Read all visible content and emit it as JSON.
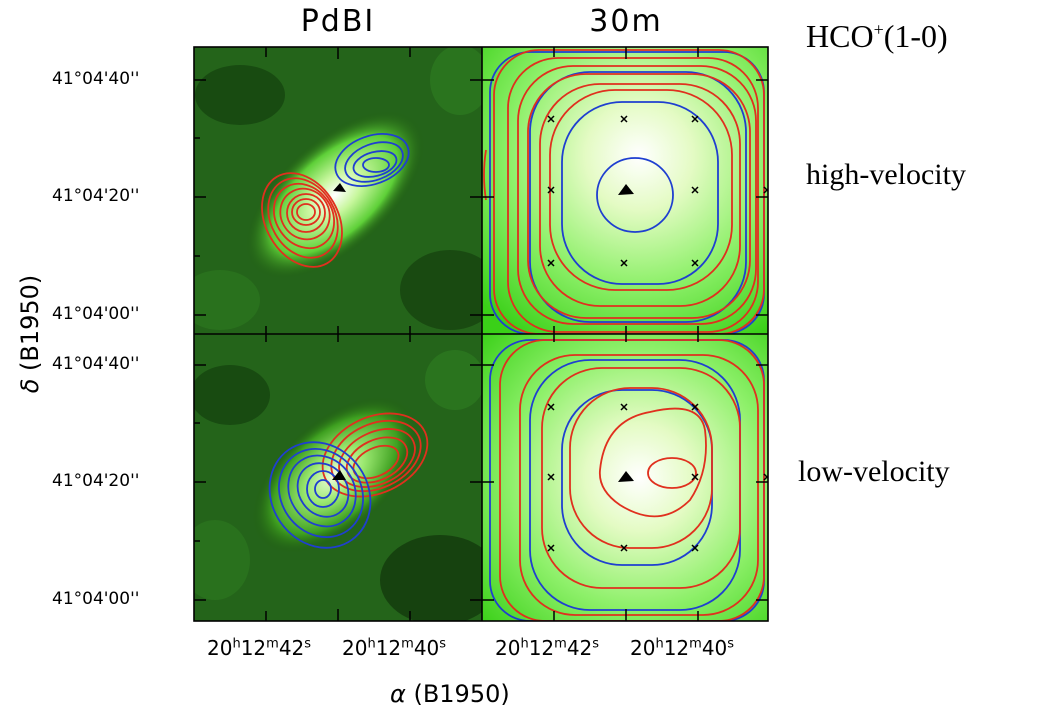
{
  "columns": {
    "left": "PdBI",
    "right": "30m"
  },
  "molecule": {
    "base": "HCO",
    "sup": "+",
    "trans": "(1-0)"
  },
  "row_labels": {
    "top": "high-velocity",
    "bottom": "low-velocity"
  },
  "yticks": [
    "41°04'40''",
    "41°04'20''",
    "41°04'00''"
  ],
  "xticks": [
    {
      "h": "20",
      "m": "12",
      "s": "42"
    },
    {
      "h": "20",
      "m": "12",
      "s": "40"
    }
  ],
  "xlabel": {
    "sym": "α",
    "text": " (B1950)"
  },
  "ylabel": {
    "sym": "δ",
    "text": " (B1950)"
  },
  "colors": {
    "red": "#e0301e",
    "blue": "#1f3fd0",
    "green": "#2fcf12"
  }
}
